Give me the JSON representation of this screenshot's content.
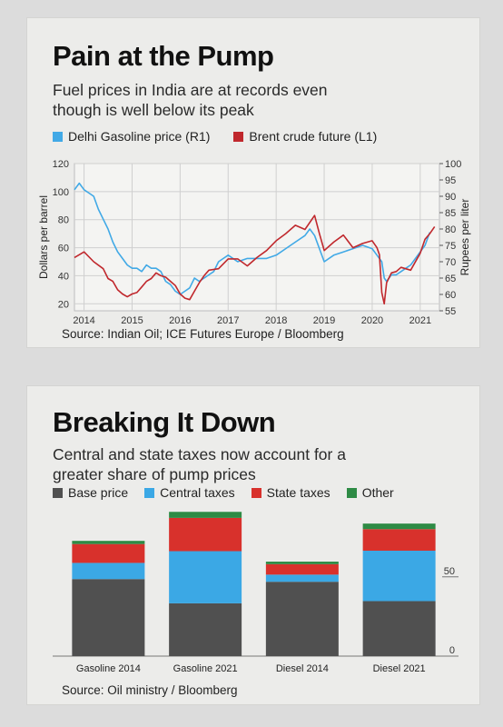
{
  "colors": {
    "gasoline": "#41a9e6",
    "brent": "#c0282d",
    "base": "#505050",
    "central": "#3ba8e5",
    "state": "#d8312c",
    "other": "#2e8b45"
  },
  "panel1": {
    "title": "Pain at the Pump",
    "subtitle_line1": "Fuel prices in India are at records even",
    "subtitle_line2": "though is well below its peak",
    "legend": [
      {
        "label": "Delhi Gasoline price (R1)",
        "color_key": "gasoline"
      },
      {
        "label": "Brent crude future (L1)",
        "color_key": "brent"
      }
    ],
    "source": "Source: Indian Oil; ICE Futures Europe / Bloomberg"
  },
  "panel2": {
    "title": "Breaking It Down",
    "subtitle_line1": "Central and state taxes now account for a",
    "subtitle_line2": "greater share of pump prices",
    "legend": [
      {
        "label": "Base price",
        "color_key": "base"
      },
      {
        "label": "Central taxes",
        "color_key": "central"
      },
      {
        "label": "State taxes",
        "color_key": "state"
      },
      {
        "label": "Other",
        "color_key": "other"
      }
    ],
    "source": "Source: Oil ministry / Bloomberg"
  },
  "chart_data": [
    {
      "type": "line",
      "title": "Pain at the Pump",
      "ylabel_left": "Dollars per barrel",
      "ylabel_right": "Rupees per liter",
      "ylim_left": [
        15,
        120
      ],
      "ylim_right": [
        55,
        100
      ],
      "yticks_left": [
        20,
        40,
        60,
        80,
        100,
        120
      ],
      "yticks_right": [
        55,
        60,
        65,
        70,
        75,
        80,
        85,
        90,
        95,
        100
      ],
      "xlim": [
        2013.8,
        2021.4
      ],
      "xticks": [
        2014,
        2015,
        2016,
        2017,
        2018,
        2019,
        2020,
        2021
      ],
      "grid": true,
      "series": [
        {
          "name": "Delhi Gasoline price (R1)",
          "axis": "right",
          "color_key": "gasoline",
          "x": [
            2013.8,
            2013.9,
            2014.0,
            2014.1,
            2014.2,
            2014.3,
            2014.4,
            2014.5,
            2014.6,
            2014.7,
            2014.8,
            2014.9,
            2015.0,
            2015.1,
            2015.2,
            2015.3,
            2015.4,
            2015.5,
            2015.6,
            2015.7,
            2015.8,
            2015.9,
            2016.0,
            2016.1,
            2016.2,
            2016.3,
            2016.4,
            2016.5,
            2016.6,
            2016.7,
            2016.8,
            2016.9,
            2017.0,
            2017.2,
            2017.4,
            2017.6,
            2017.8,
            2018.0,
            2018.2,
            2018.4,
            2018.6,
            2018.7,
            2018.8,
            2018.9,
            2019.0,
            2019.2,
            2019.4,
            2019.6,
            2019.8,
            2020.0,
            2020.1,
            2020.2,
            2020.25,
            2020.3,
            2020.4,
            2020.5,
            2020.6,
            2020.7,
            2020.8,
            2020.9,
            2021.0,
            2021.1,
            2021.2
          ],
          "y": [
            92,
            94,
            92,
            91,
            90,
            86,
            83,
            80,
            76,
            73,
            71,
            69,
            68,
            68,
            67,
            69,
            68,
            68,
            67,
            64,
            63,
            61,
            60,
            61,
            62,
            65,
            64,
            65,
            66,
            67,
            70,
            71,
            72,
            70,
            71,
            71,
            71,
            72,
            74,
            76,
            78,
            80,
            78,
            74,
            70,
            72,
            73,
            74,
            75,
            74,
            72,
            70,
            65,
            64,
            66,
            66,
            67,
            68,
            69,
            71,
            73,
            75,
            79
          ]
        },
        {
          "name": "Brent crude future (L1)",
          "axis": "left",
          "color_key": "brent",
          "x": [
            2013.8,
            2014.0,
            2014.2,
            2014.4,
            2014.5,
            2014.6,
            2014.7,
            2014.8,
            2014.9,
            2015.0,
            2015.1,
            2015.2,
            2015.3,
            2015.4,
            2015.5,
            2015.6,
            2015.7,
            2015.8,
            2015.9,
            2016.0,
            2016.1,
            2016.2,
            2016.3,
            2016.4,
            2016.5,
            2016.6,
            2016.8,
            2017.0,
            2017.2,
            2017.4,
            2017.6,
            2017.8,
            2018.0,
            2018.2,
            2018.4,
            2018.6,
            2018.8,
            2018.9,
            2019.0,
            2019.2,
            2019.4,
            2019.6,
            2019.8,
            2020.0,
            2020.1,
            2020.15,
            2020.2,
            2020.25,
            2020.3,
            2020.4,
            2020.5,
            2020.6,
            2020.8,
            2021.0,
            2021.1,
            2021.2,
            2021.3
          ],
          "y": [
            53,
            57,
            50,
            45,
            38,
            36,
            30,
            27,
            25,
            27,
            28,
            32,
            36,
            38,
            42,
            40,
            39,
            36,
            33,
            27,
            24,
            23,
            29,
            35,
            40,
            44,
            45,
            52,
            52,
            47,
            53,
            58,
            65,
            70,
            76,
            73,
            83,
            70,
            58,
            64,
            69,
            60,
            63,
            65,
            60,
            55,
            28,
            20,
            35,
            42,
            43,
            46,
            44,
            56,
            66,
            70,
            75
          ]
        }
      ]
    },
    {
      "type": "bar",
      "stacked": true,
      "title": "Breaking It Down",
      "categories": [
        "Gasoline 2014",
        "Gasoline 2021",
        "Diesel 2014",
        "Diesel 2021"
      ],
      "ylim": [
        0,
        90
      ],
      "yticks": [
        0,
        50
      ],
      "series": [
        {
          "name": "Base price",
          "color_key": "base",
          "values": [
            48.6,
            33.3,
            46.9,
            34.7
          ]
        },
        {
          "name": "Central taxes",
          "color_key": "central",
          "values": [
            10.2,
            32.9,
            4.5,
            31.8
          ]
        },
        {
          "name": "State taxes",
          "color_key": "state",
          "values": [
            11.9,
            21.0,
            6.6,
            13.6
          ]
        },
        {
          "name": "Other",
          "color_key": "other",
          "values": [
            2.0,
            3.8,
            1.6,
            3.5
          ]
        }
      ]
    }
  ]
}
